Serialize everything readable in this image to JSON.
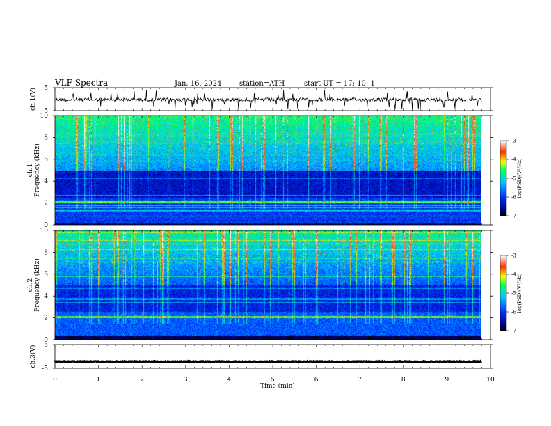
{
  "header": {
    "title": "VLF  Spectra",
    "date": "Jan. 16, 2024",
    "station": "station=ATH",
    "start": "start  UT  =    17: 10: 1"
  },
  "chart_data": [
    {
      "type": "line",
      "id": "ch1",
      "ylabel": "ch.1(V)",
      "ylim": [
        -5,
        5
      ],
      "yticks": [
        "5",
        "-5"
      ],
      "baseline": -0.2
    },
    {
      "type": "heatmap",
      "id": "ch1-spectrogram",
      "ylabel_top": "ch.1",
      "ylabel": "Frequency (kHz)",
      "ylim": [
        0,
        10
      ],
      "yticks": [
        "0",
        "2",
        "4",
        "6",
        "8",
        "10"
      ],
      "colorbar": {
        "label": "log(PSD)(V²/Hz)",
        "range": [
          -7,
          -3
        ],
        "ticks": [
          "-3",
          "-4",
          "-5",
          "-6",
          "-7"
        ]
      }
    },
    {
      "type": "heatmap",
      "id": "ch2-spectrogram",
      "ylabel_top": "ch.2",
      "ylabel": "Frequency (kHz)",
      "ylim": [
        0,
        10
      ],
      "yticks": [
        "0",
        "2",
        "4",
        "6",
        "8",
        "10"
      ],
      "colorbar": {
        "label": "log(PSD)(V²/Hz)",
        "range": [
          -7,
          -3
        ],
        "ticks": [
          "-3",
          "-4",
          "-5",
          "-6",
          "-7"
        ]
      }
    },
    {
      "type": "line",
      "id": "ch3",
      "ylabel": "ch.3(V)",
      "ylim": [
        -5,
        5
      ],
      "yticks": [
        "5",
        "-5"
      ],
      "baseline": -2.2
    }
  ],
  "xaxis": {
    "label": "Time  (min)",
    "xlim": [
      0,
      10
    ],
    "ticks": [
      "0",
      "1",
      "2",
      "3",
      "4",
      "5",
      "6",
      "7",
      "8",
      "9",
      "10"
    ],
    "data_end": 9.8
  }
}
